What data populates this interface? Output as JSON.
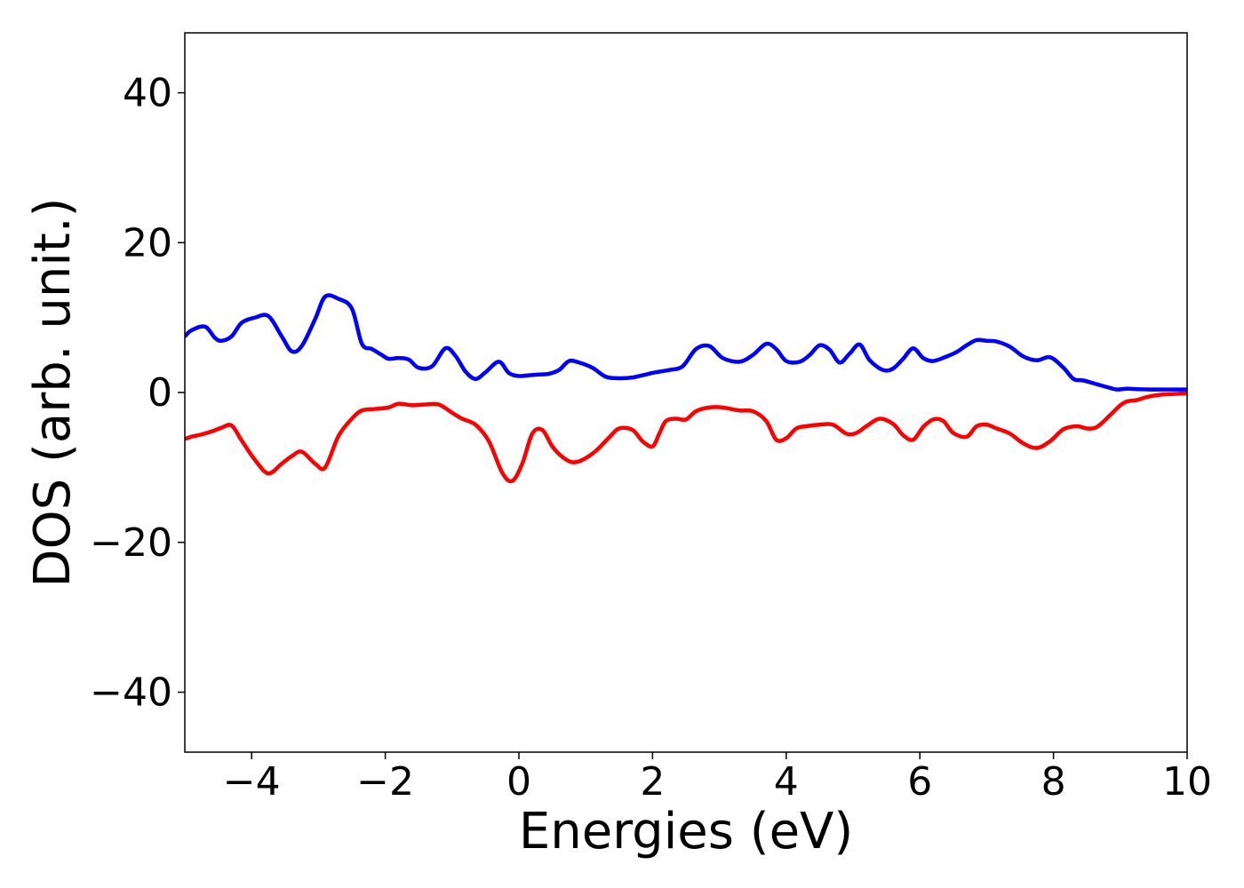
{
  "chart_data": {
    "type": "line",
    "xlabel": "Energies (eV)",
    "ylabel": "DOS (arb. unit.)",
    "xlim": [
      -5,
      10
    ],
    "ylim": [
      -48,
      48
    ],
    "xticks": [
      -4,
      -2,
      0,
      2,
      4,
      6,
      8,
      10
    ],
    "xtick_labels": [
      "−4",
      "−2",
      "0",
      "2",
      "4",
      "6",
      "8",
      "10"
    ],
    "yticks": [
      40,
      20,
      0,
      -20,
      -40
    ],
    "ytick_labels": [
      "40",
      "20",
      "0",
      "−20",
      "−40"
    ],
    "grid": false,
    "legend": false,
    "series": [
      {
        "color": "#0000ff",
        "x": [
          -5.0,
          -4.9,
          -4.7,
          -4.55,
          -4.45,
          -4.3,
          -4.15,
          -3.95,
          -3.75,
          -3.55,
          -3.4,
          -3.25,
          -3.05,
          -2.9,
          -2.7,
          -2.5,
          -2.35,
          -2.2,
          -2.05,
          -1.95,
          -1.8,
          -1.65,
          -1.5,
          -1.3,
          -1.1,
          -0.95,
          -0.8,
          -0.65,
          -0.5,
          -0.3,
          -0.15,
          0.0,
          0.15,
          0.3,
          0.45,
          0.6,
          0.75,
          0.9,
          1.1,
          1.3,
          1.5,
          1.7,
          1.85,
          2.05,
          2.25,
          2.45,
          2.65,
          2.85,
          3.05,
          3.3,
          3.5,
          3.7,
          3.85,
          4.0,
          4.2,
          4.35,
          4.5,
          4.65,
          4.8,
          4.95,
          5.1,
          5.25,
          5.45,
          5.6,
          5.75,
          5.9,
          6.05,
          6.2,
          6.4,
          6.55,
          6.7,
          6.85,
          7.0,
          7.15,
          7.35,
          7.55,
          7.75,
          7.95,
          8.15,
          8.3,
          8.45,
          8.65,
          8.85,
          8.95,
          9.1,
          9.25,
          9.45,
          9.6,
          9.8,
          10.0
        ],
        "values": [
          7.5,
          8.3,
          8.8,
          7.3,
          6.9,
          7.5,
          9.3,
          10.0,
          10.2,
          7.5,
          5.5,
          6.2,
          9.8,
          12.8,
          12.5,
          11.2,
          6.5,
          5.8,
          5.0,
          4.5,
          4.6,
          4.4,
          3.3,
          3.5,
          5.9,
          4.9,
          2.8,
          1.8,
          2.7,
          4.1,
          2.6,
          2.2,
          2.3,
          2.4,
          2.5,
          3.0,
          4.2,
          4.0,
          3.3,
          2.1,
          1.9,
          2.0,
          2.3,
          2.7,
          3.0,
          3.5,
          5.8,
          6.2,
          4.6,
          4.1,
          5.0,
          6.5,
          5.8,
          4.2,
          4.1,
          5.0,
          6.3,
          5.7,
          4.0,
          5.2,
          6.4,
          4.3,
          3.0,
          3.2,
          4.5,
          5.9,
          4.6,
          4.2,
          4.8,
          5.4,
          6.3,
          7.0,
          6.9,
          6.8,
          6.1,
          4.8,
          4.3,
          4.7,
          3.3,
          1.8,
          1.6,
          1.1,
          0.6,
          0.4,
          0.5,
          0.45,
          0.4,
          0.4,
          0.4,
          0.4
        ]
      },
      {
        "color": "#ff0000",
        "x": [
          -5.0,
          -4.9,
          -4.75,
          -4.6,
          -4.45,
          -4.3,
          -4.15,
          -3.95,
          -3.75,
          -3.55,
          -3.4,
          -3.25,
          -3.05,
          -2.9,
          -2.7,
          -2.5,
          -2.35,
          -2.15,
          -1.95,
          -1.8,
          -1.6,
          -1.4,
          -1.2,
          -1.0,
          -0.85,
          -0.65,
          -0.45,
          -0.25,
          -0.1,
          0.05,
          0.2,
          0.35,
          0.5,
          0.65,
          0.8,
          0.95,
          1.15,
          1.35,
          1.5,
          1.7,
          1.85,
          2.0,
          2.1,
          2.2,
          2.35,
          2.5,
          2.65,
          2.85,
          3.05,
          3.3,
          3.5,
          3.7,
          3.85,
          4.0,
          4.15,
          4.3,
          4.5,
          4.7,
          4.9,
          5.05,
          5.2,
          5.4,
          5.6,
          5.75,
          5.9,
          6.05,
          6.2,
          6.35,
          6.5,
          6.7,
          6.85,
          7.0,
          7.15,
          7.35,
          7.55,
          7.75,
          7.95,
          8.15,
          8.35,
          8.5,
          8.65,
          8.85,
          9.0,
          9.1,
          9.25,
          9.4,
          9.6,
          9.8,
          10.0
        ],
        "values": [
          -6.2,
          -5.9,
          -5.6,
          -5.2,
          -4.7,
          -4.4,
          -6.4,
          -9.0,
          -10.8,
          -9.5,
          -8.5,
          -7.9,
          -9.5,
          -10.0,
          -5.8,
          -3.5,
          -2.4,
          -2.2,
          -2.0,
          -1.5,
          -1.7,
          -1.6,
          -1.6,
          -2.7,
          -3.5,
          -4.3,
          -6.5,
          -10.7,
          -11.8,
          -9.5,
          -5.5,
          -5.0,
          -7.2,
          -8.6,
          -9.3,
          -9.0,
          -7.8,
          -6.0,
          -4.8,
          -5.0,
          -6.5,
          -7.2,
          -5.5,
          -3.8,
          -3.5,
          -3.6,
          -2.5,
          -2.0,
          -2.0,
          -2.4,
          -2.5,
          -3.8,
          -6.3,
          -6.1,
          -4.8,
          -4.5,
          -4.3,
          -4.3,
          -5.5,
          -5.4,
          -4.5,
          -3.5,
          -4.2,
          -5.7,
          -6.3,
          -4.6,
          -3.6,
          -3.8,
          -5.4,
          -5.9,
          -4.5,
          -4.3,
          -4.8,
          -5.5,
          -6.8,
          -7.4,
          -6.5,
          -4.9,
          -4.5,
          -4.8,
          -4.6,
          -3.0,
          -1.7,
          -1.2,
          -1.0,
          -0.6,
          -0.3,
          -0.2,
          -0.1
        ]
      }
    ]
  }
}
